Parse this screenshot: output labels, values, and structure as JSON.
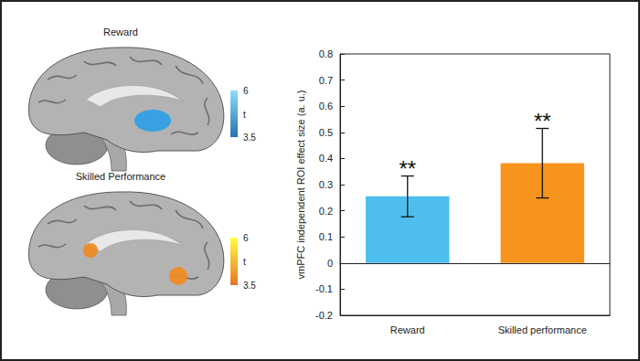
{
  "chart_data": {
    "type": "bar",
    "categories": [
      "Reward",
      "Skilled performance"
    ],
    "values": [
      0.255,
      0.382
    ],
    "errors": [
      0.078,
      0.133
    ],
    "significance": [
      "**",
      "**"
    ],
    "colors": [
      "#4DBEEE",
      "#F7941D"
    ],
    "ylabel": "vmPFC independent ROI effect size (a. u.)",
    "ylim": [
      -0.2,
      0.8
    ],
    "yticks": [
      -0.2,
      -0.1,
      0,
      0.1,
      0.2,
      0.3,
      0.4,
      0.5,
      0.6,
      0.7,
      0.8
    ],
    "grid": false
  },
  "brain_maps": [
    {
      "title": "Reward",
      "blob_color": "#2E9FE6",
      "colorbar": {
        "label": "t",
        "range": [
          3.5,
          6
        ],
        "ticks": [
          3.5,
          6
        ],
        "colors": [
          "#2A6FB0",
          "#8FDCFB"
        ]
      }
    },
    {
      "title": "Skilled Performance",
      "blob_color": "#F08A1E",
      "colorbar": {
        "label": "t",
        "range": [
          3.5,
          6
        ],
        "ticks": [
          3.5,
          6
        ],
        "colors": [
          "#E8742A",
          "#FFFF40"
        ]
      }
    }
  ]
}
